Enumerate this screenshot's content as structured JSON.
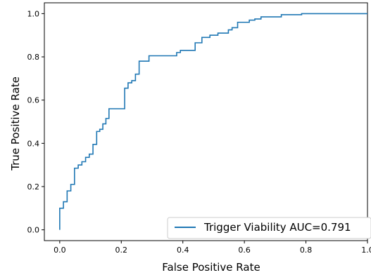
{
  "chart_data": {
    "type": "line",
    "title": "",
    "xlabel": "False Positive Rate",
    "ylabel": "True Positive Rate",
    "xlim": [
      -0.05,
      1.0
    ],
    "ylim": [
      -0.05,
      1.05
    ],
    "xticks": [
      "0.0",
      "0.2",
      "0.4",
      "0.6",
      "0.8",
      "1.0"
    ],
    "yticks": [
      "0.0",
      "0.2",
      "0.4",
      "0.6",
      "0.8",
      "1.0"
    ],
    "grid": false,
    "legend_position": "lower-right",
    "series": [
      {
        "name": "Trigger Viability AUC=0.791",
        "color": "#1f77b4",
        "x": [
          0.0,
          0.0,
          0.0,
          0.0,
          0.012,
          0.012,
          0.024,
          0.024,
          0.036,
          0.036,
          0.048,
          0.048,
          0.06,
          0.06,
          0.072,
          0.072,
          0.084,
          0.084,
          0.096,
          0.096,
          0.108,
          0.108,
          0.12,
          0.12,
          0.13,
          0.13,
          0.14,
          0.14,
          0.15,
          0.15,
          0.16,
          0.16,
          0.168,
          0.168,
          0.178,
          0.178,
          0.19,
          0.19,
          0.211,
          0.211,
          0.222,
          0.222,
          0.234,
          0.234,
          0.246,
          0.246,
          0.258,
          0.258,
          0.272,
          0.272,
          0.29,
          0.29,
          0.38,
          0.38,
          0.392,
          0.392,
          0.44,
          0.44,
          0.462,
          0.462,
          0.488,
          0.488,
          0.514,
          0.514,
          0.548,
          0.548,
          0.56,
          0.56,
          0.578,
          0.578,
          0.616,
          0.616,
          0.634,
          0.634,
          0.654,
          0.654,
          0.72,
          0.72,
          0.786,
          0.786,
          0.852,
          0.852,
          1.0
        ],
        "y": [
          0.0,
          0.1,
          0.1,
          0.1,
          0.1,
          0.13,
          0.13,
          0.18,
          0.18,
          0.21,
          0.21,
          0.285,
          0.285,
          0.3,
          0.3,
          0.315,
          0.315,
          0.335,
          0.335,
          0.35,
          0.35,
          0.395,
          0.395,
          0.455,
          0.455,
          0.465,
          0.465,
          0.49,
          0.49,
          0.515,
          0.515,
          0.56,
          0.56,
          0.56,
          0.56,
          0.56,
          0.56,
          0.56,
          0.56,
          0.655,
          0.655,
          0.68,
          0.68,
          0.69,
          0.69,
          0.72,
          0.72,
          0.78,
          0.78,
          0.78,
          0.78,
          0.805,
          0.805,
          0.82,
          0.82,
          0.83,
          0.83,
          0.865,
          0.865,
          0.89,
          0.89,
          0.9,
          0.9,
          0.91,
          0.91,
          0.925,
          0.925,
          0.935,
          0.935,
          0.96,
          0.96,
          0.97,
          0.97,
          0.975,
          0.975,
          0.985,
          0.985,
          0.995,
          0.995,
          1.0,
          1.0,
          1.0,
          1.0
        ]
      }
    ]
  }
}
